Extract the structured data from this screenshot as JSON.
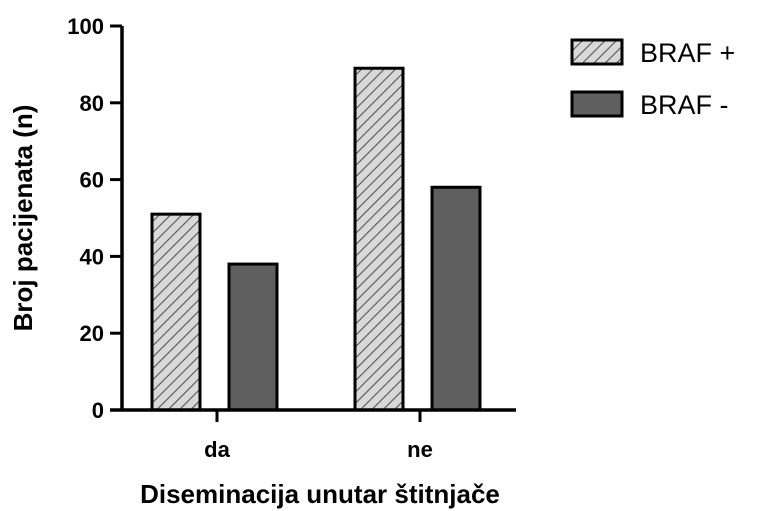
{
  "chart_data": {
    "type": "bar",
    "categories": [
      "da",
      "ne"
    ],
    "series": [
      {
        "name": "BRAF +",
        "values": [
          51,
          89
        ],
        "fill": "#d9d9d9",
        "pattern": "hatch"
      },
      {
        "name": "BRAF -",
        "values": [
          38,
          58
        ],
        "fill": "#5f5f5f",
        "pattern": "solid"
      }
    ],
    "xlabel": "Diseminacija unutar štitnjače",
    "ylabel": "Broj pacijenata (n)",
    "ylim": [
      0,
      100
    ],
    "yticks": [
      0,
      20,
      40,
      60,
      80,
      100
    ],
    "grid": false,
    "legend_position": "top-right"
  },
  "colors": {
    "axis": "#000000",
    "bar_outline": "#000000",
    "hatch_line": "#555555"
  }
}
